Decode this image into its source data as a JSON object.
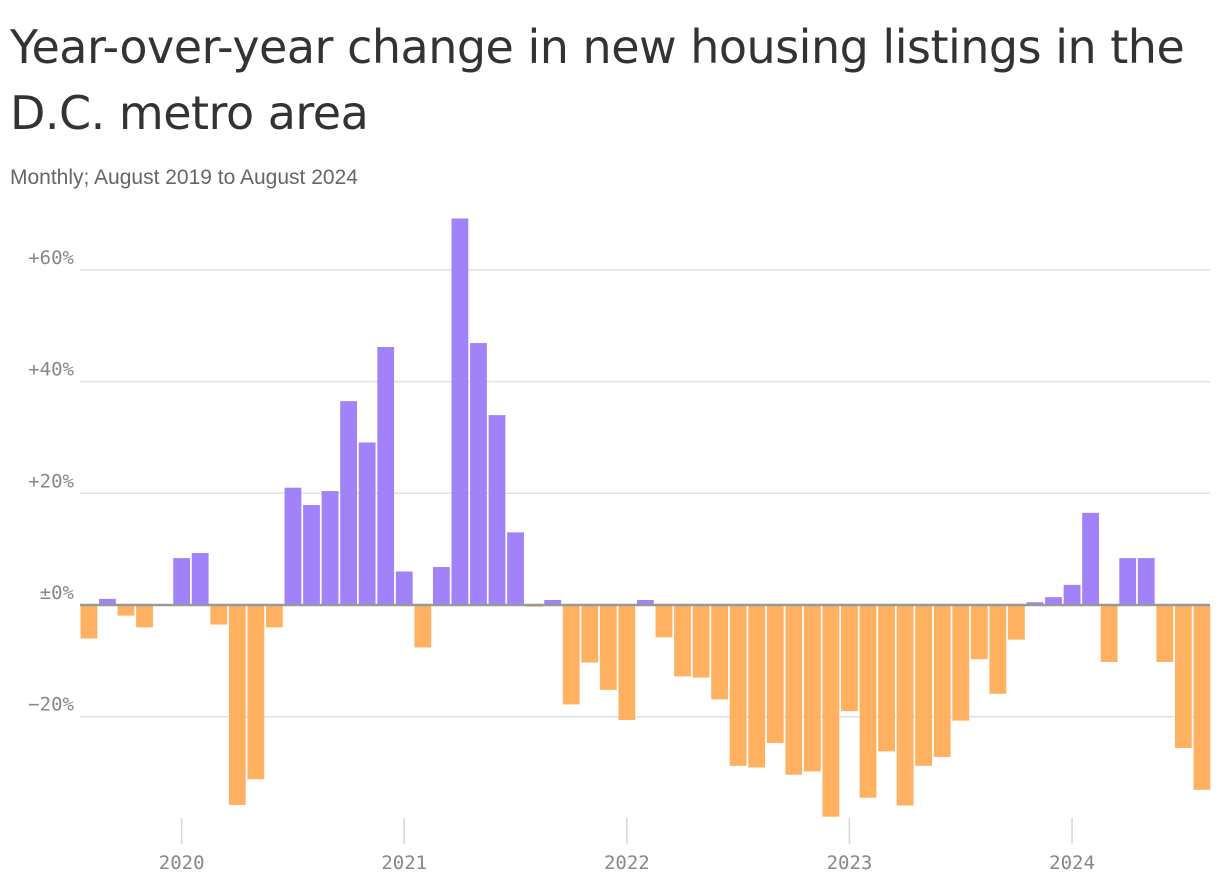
{
  "chart_data": {
    "type": "bar",
    "title": "Year-over-year change in new housing listings in the D.C. metro area",
    "subtitle": "Monthly; August 2019 to August 2024",
    "xlabel": "",
    "ylabel": "",
    "ylim": [
      -38,
      70
    ],
    "y_ticks": [
      {
        "value": 60,
        "label": "+60%"
      },
      {
        "value": 40,
        "label": "+40%"
      },
      {
        "value": 20,
        "label": "+20%"
      },
      {
        "value": 0,
        "label": "±0%"
      },
      {
        "value": -20,
        "label": "−20%"
      }
    ],
    "x_ticks": [
      {
        "value": "2020-01",
        "label": "2020"
      },
      {
        "value": "2021-01",
        "label": "2021"
      },
      {
        "value": "2022-01",
        "label": "2022"
      },
      {
        "value": "2023-01",
        "label": "2023"
      },
      {
        "value": "2024-01",
        "label": "2024"
      }
    ],
    "grid": true,
    "legend": "none",
    "colors": {
      "positive": "#a182f9",
      "negative": "#ffb061",
      "zero_line": "#999999",
      "grid": "#e2e2e2"
    },
    "categories": [
      "2019-08",
      "2019-09",
      "2019-10",
      "2019-11",
      "2019-12",
      "2020-01",
      "2020-02",
      "2020-03",
      "2020-04",
      "2020-05",
      "2020-06",
      "2020-07",
      "2020-08",
      "2020-09",
      "2020-10",
      "2020-11",
      "2020-12",
      "2021-01",
      "2021-02",
      "2021-03",
      "2021-04",
      "2021-05",
      "2021-06",
      "2021-07",
      "2021-08",
      "2021-09",
      "2021-10",
      "2021-11",
      "2021-12",
      "2022-01",
      "2022-02",
      "2022-03",
      "2022-04",
      "2022-05",
      "2022-06",
      "2022-07",
      "2022-08",
      "2022-09",
      "2022-10",
      "2022-11",
      "2022-12",
      "2023-01",
      "2023-02",
      "2023-03",
      "2023-04",
      "2023-05",
      "2023-06",
      "2023-07",
      "2023-08",
      "2023-09",
      "2023-10",
      "2023-11",
      "2023-12",
      "2024-01",
      "2024-02",
      "2024-03",
      "2024-04",
      "2024-05",
      "2024-06",
      "2024-07",
      "2024-08"
    ],
    "values": [
      -6.0,
      1.1,
      -1.9,
      -4.0,
      0.0,
      8.4,
      9.3,
      -3.5,
      -35.8,
      -31.2,
      -4.0,
      21.0,
      17.9,
      20.4,
      36.5,
      29.1,
      46.2,
      6.0,
      -7.6,
      6.8,
      69.2,
      46.9,
      34.0,
      13.0,
      -0.3,
      0.9,
      -17.8,
      -10.3,
      -15.2,
      -20.6,
      0.9,
      -5.8,
      -12.8,
      -13.0,
      -16.9,
      -28.8,
      -29.1,
      -24.7,
      -30.4,
      -29.8,
      -37.9,
      -19.0,
      -34.5,
      -26.2,
      -35.9,
      -28.8,
      -27.2,
      -20.7,
      -9.7,
      -15.9,
      -6.2,
      0.5,
      1.4,
      3.6,
      16.5,
      -10.2,
      8.4,
      8.4,
      -10.2,
      -25.6,
      -33.1
    ]
  }
}
